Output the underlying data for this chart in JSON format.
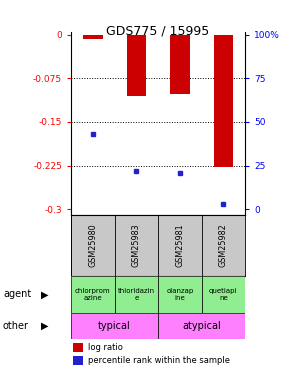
{
  "title": "GDS775 / 15995",
  "samples": [
    "GSM25980",
    "GSM25983",
    "GSM25981",
    "GSM25982"
  ],
  "log_ratios": [
    -0.008,
    -0.105,
    -0.102,
    -0.228
  ],
  "percentile_ranks": [
    0.43,
    0.22,
    0.21,
    0.03
  ],
  "agents": [
    "chlorprom\nazine",
    "thioridazin\ne",
    "olanzap\nine",
    "quetiapi\nne"
  ],
  "ylim_min": -0.31,
  "ylim_max": 0.005,
  "yticks_left": [
    0,
    -0.075,
    -0.15,
    -0.225,
    -0.3
  ],
  "yticks_right_labels": [
    "100%",
    "75",
    "50",
    "25",
    "0"
  ],
  "yticks_right_vals": [
    0.0,
    -0.075,
    -0.15,
    -0.225,
    -0.3
  ],
  "bar_color": "#CC0000",
  "dot_color": "#2222CC",
  "agent_color": "#90EE90",
  "other_color": "#FF80FF",
  "sample_color": "#C8C8C8"
}
